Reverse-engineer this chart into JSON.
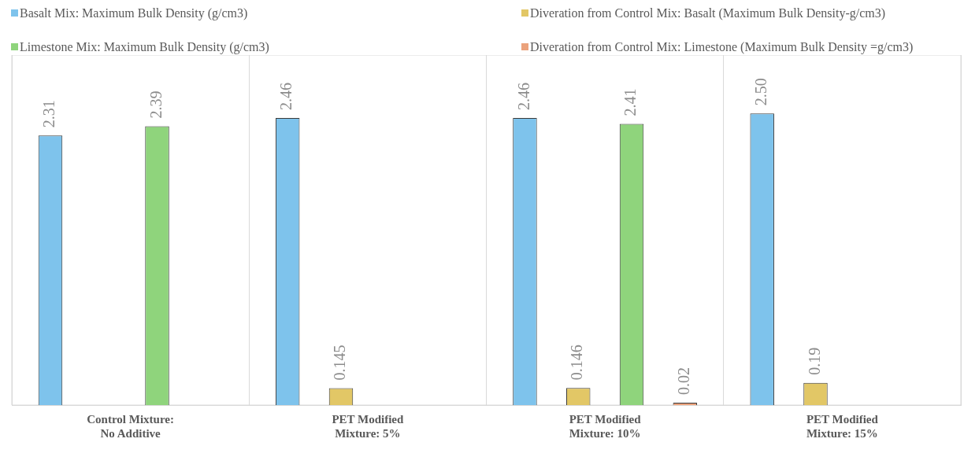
{
  "chart_data": {
    "type": "bar",
    "categories": [
      "Control Mixture: No Additive",
      "PET Modified Mixture: 5%",
      "PET Modified Mixture: 10%",
      "PET Modified Mixture: 15%"
    ],
    "series": [
      {
        "name": "Basalt Mix: Maximum Bulk Density (g/cm3)",
        "color": "#7ec3ec",
        "values": [
          2.31,
          2.46,
          2.46,
          2.5
        ],
        "value_labels": [
          "2.31",
          "2.46",
          "2.46",
          "2.50"
        ]
      },
      {
        "name": "Diveration from Control Mix: Basalt (Maximum Bulk Density-g/cm3)",
        "color": "#e2c766",
        "values": [
          null,
          0.145,
          0.146,
          0.19
        ]
      },
      {
        "name": "Limestone Mix: Maximum Bulk Density (g/cm3)",
        "color": "#8fd47c",
        "values": [
          2.39,
          null,
          2.41,
          null
        ]
      },
      {
        "name": "Diveration from Control Mix: Limestone (Maximum Bulk Density =g/cm3)",
        "color": "#eba27c",
        "values": [
          null,
          null,
          0.02,
          null
        ]
      }
    ],
    "data_labels": true,
    "grid": "x",
    "legend": "top"
  }
}
